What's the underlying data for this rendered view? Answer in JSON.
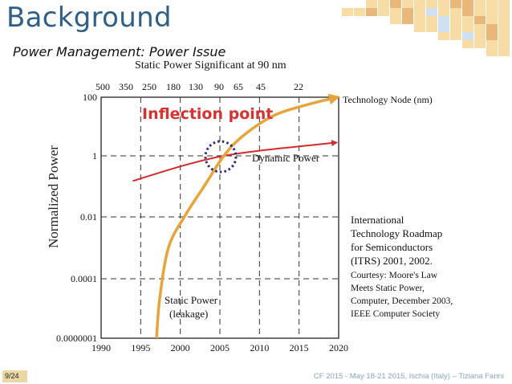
{
  "slide": {
    "title": "Background",
    "subtitle": "Power Management: Power Issue",
    "page_number": "9/24",
    "footer": "CF 2015 - May 18-21 2015, Ischia (Italy) – Tiziana Fanni"
  },
  "colors": {
    "title": "#2e5f86",
    "static_curve": "#e8a33a",
    "dynamic_curve": "#d42a2a",
    "inflection_text": "#d93030",
    "circle": "#2b2b7a",
    "tile_light": "#f7dca6",
    "tile_dark": "#e9b77a",
    "tile_blue": "#cfe0ee"
  },
  "chart_data": {
    "type": "line",
    "title": "Static Power Significant at 90 nm",
    "ylabel": "Normalized Power",
    "x_ticks": [
      "1990",
      "1995",
      "2000",
      "2005",
      "2010",
      "2015",
      "2020"
    ],
    "x_range": [
      1990,
      2020
    ],
    "y_ticks": [
      "100",
      "1",
      "0.01",
      "0.0001",
      "0.0000001"
    ],
    "top_ticks": [
      "500",
      "350",
      "250",
      "180",
      "130",
      "90",
      "65",
      "45",
      "22"
    ],
    "top_axis_label": "Technology Node (nm)",
    "annotation": "Inflection point",
    "series": [
      {
        "name": "Dynamic Power",
        "points": [
          [
            1994,
            0.15
          ],
          [
            2000,
            0.45
          ],
          [
            2005,
            0.95
          ],
          [
            2010,
            1.5
          ],
          [
            2015,
            2.1
          ],
          [
            2019.5,
            2.8
          ]
        ]
      },
      {
        "name": "Static Power (leakage)",
        "label_lines": [
          "Static Power",
          "(leakage)"
        ],
        "points": [
          [
            1997,
            1e-07
          ],
          [
            1997.4,
            1e-05
          ],
          [
            1998.5,
            0.001
          ],
          [
            2000.5,
            0.01
          ],
          [
            2003,
            0.1
          ],
          [
            2005.5,
            1
          ],
          [
            2008,
            5
          ],
          [
            2012,
            25
          ],
          [
            2016.5,
            60
          ],
          [
            2019.5,
            95
          ]
        ]
      }
    ],
    "source_note": {
      "heading": [
        "International",
        "Technology Roadmap",
        "for Semiconductors",
        "(ITRS) 2001, 2002."
      ],
      "courtesy": [
        "Courtesy: Moore's Law",
        "Meets Static Power,",
        "Computer, December 2003,",
        "IEEE Computer Society"
      ]
    }
  }
}
